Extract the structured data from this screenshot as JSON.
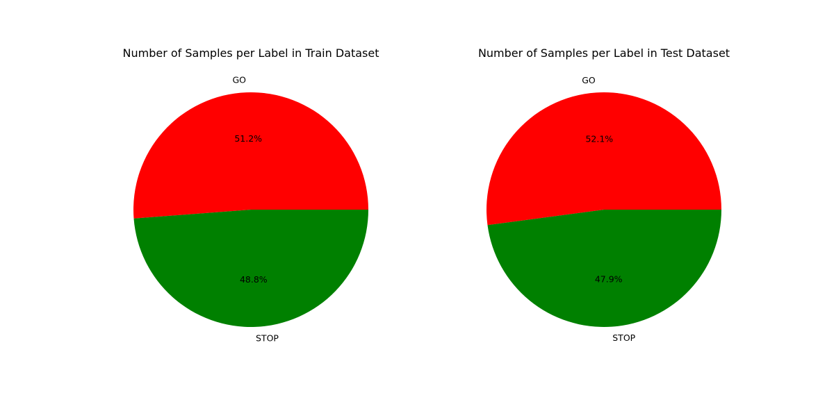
{
  "chart_data": [
    {
      "type": "pie",
      "title": "Number of Samples per Label in Train Dataset",
      "labels": [
        "GO",
        "STOP"
      ],
      "values": [
        51.2,
        48.8
      ],
      "value_labels": [
        "51.2%",
        "48.8%"
      ],
      "colors": [
        "#ff0000",
        "#008000"
      ],
      "start_angle_deg": 0,
      "direction": "counterclockwise"
    },
    {
      "type": "pie",
      "title": "Number of Samples per Label in Test Dataset",
      "labels": [
        "GO",
        "STOP"
      ],
      "values": [
        52.1,
        47.9
      ],
      "value_labels": [
        "52.1%",
        "47.9%"
      ],
      "colors": [
        "#ff0000",
        "#008000"
      ],
      "start_angle_deg": 0,
      "direction": "counterclockwise"
    }
  ]
}
